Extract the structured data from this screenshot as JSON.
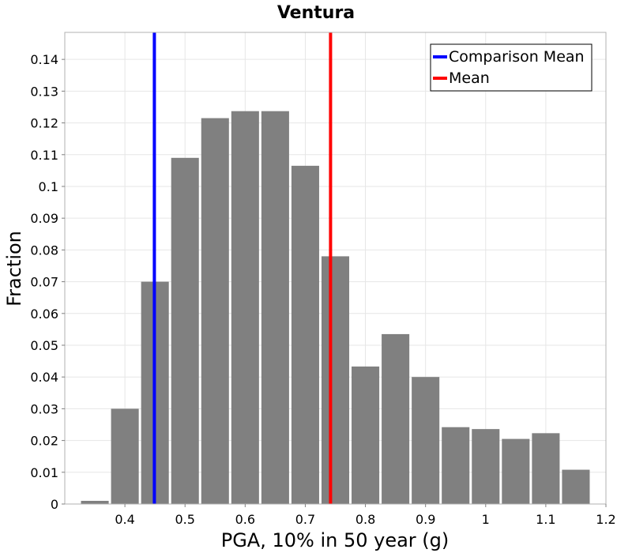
{
  "chart_data": {
    "type": "bar",
    "title": "Ventura",
    "xlabel": "PGA, 10% in 50 year (g)",
    "ylabel": "Fraction",
    "xlim": [
      0.3,
      1.2
    ],
    "ylim": [
      0,
      0.1485
    ],
    "xticks": [
      0.4,
      0.5,
      0.6,
      0.7,
      0.8,
      0.9,
      1,
      1.1,
      1.2
    ],
    "xtick_labels": [
      "0.4",
      "0.5",
      "0.6",
      "0.7",
      "0.8",
      "0.9",
      "1",
      "1.1",
      "1.2"
    ],
    "yticks": [
      0,
      0.01,
      0.02,
      0.03,
      0.04,
      0.05,
      0.06,
      0.07,
      0.08,
      0.09,
      0.1,
      0.11,
      0.12,
      0.13,
      0.14
    ],
    "ytick_labels": [
      "0",
      "0.01",
      "0.02",
      "0.03",
      "0.04",
      "0.05",
      "0.06",
      "0.07",
      "0.08",
      "0.09",
      "0.1",
      "0.11",
      "0.12",
      "0.13",
      "0.14"
    ],
    "grid": true,
    "bin_width": 0.05,
    "bins": [
      {
        "x": 0.35,
        "value": 0.001
      },
      {
        "x": 0.4,
        "value": 0.03
      },
      {
        "x": 0.45,
        "value": 0.07
      },
      {
        "x": 0.5,
        "value": 0.109
      },
      {
        "x": 0.55,
        "value": 0.1215
      },
      {
        "x": 0.6,
        "value": 0.1237
      },
      {
        "x": 0.65,
        "value": 0.1237
      },
      {
        "x": 0.7,
        "value": 0.1065
      },
      {
        "x": 0.75,
        "value": 0.078
      },
      {
        "x": 0.8,
        "value": 0.0433
      },
      {
        "x": 0.85,
        "value": 0.0535
      },
      {
        "x": 0.9,
        "value": 0.04
      },
      {
        "x": 0.95,
        "value": 0.0242
      },
      {
        "x": 1.0,
        "value": 0.0236
      },
      {
        "x": 1.05,
        "value": 0.0205
      },
      {
        "x": 1.1,
        "value": 0.0223
      },
      {
        "x": 1.15,
        "value": 0.0108
      }
    ],
    "bar_color": "#808080",
    "vlines": [
      {
        "name": "Comparison Mean",
        "x": 0.449,
        "color": "#0000ff"
      },
      {
        "name": "Mean",
        "x": 0.742,
        "color": "#ff0000"
      }
    ],
    "legend_position": "top-right"
  }
}
